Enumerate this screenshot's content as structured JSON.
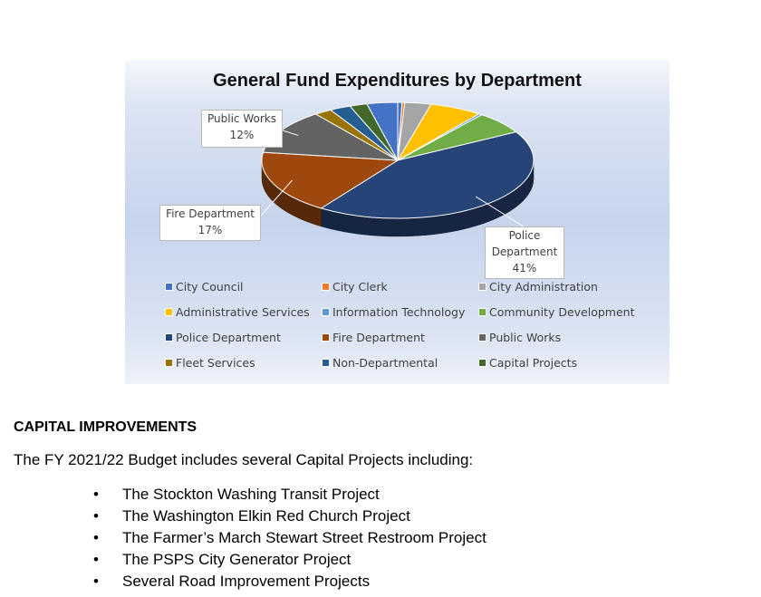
{
  "chart_data": {
    "type": "pie",
    "title": "General Fund Expenditures by Department",
    "series": [
      {
        "name": "City Council",
        "value": 0.5,
        "color": "#4472c4"
      },
      {
        "name": "City Clerk",
        "value": 0.3,
        "color": "#ed7d31"
      },
      {
        "name": "City Administration",
        "value": 3,
        "color": "#a5a5a5"
      },
      {
        "name": "Administrative Services",
        "value": 6,
        "color": "#ffc000"
      },
      {
        "name": "Information Technology",
        "value": 0.4,
        "color": "#5b9bd5"
      },
      {
        "name": "Community Development",
        "value": 6,
        "color": "#70ad47"
      },
      {
        "name": "Police Department",
        "value": 41,
        "color": "#264478"
      },
      {
        "name": "Fire Department",
        "value": 17,
        "color": "#9e480e"
      },
      {
        "name": "Public Works",
        "value": 12,
        "color": "#636363"
      },
      {
        "name": "Fleet Services",
        "value": 2,
        "color": "#997300"
      },
      {
        "name": "Non-Departmental",
        "value": 2.4,
        "color": "#255e91"
      },
      {
        "name": "Capital Projects",
        "value": 2,
        "color": "#43682b"
      },
      {
        "name": "",
        "value": 3.5,
        "color": "#4472c4"
      }
    ],
    "labels": [
      {
        "lines": [
          "Public Works",
          "12%"
        ]
      },
      {
        "lines": [
          "Fire Department",
          "17%"
        ]
      },
      {
        "lines": [
          "Police",
          "Department",
          "41%"
        ]
      }
    ],
    "legend": [
      {
        "name": "City Council",
        "color": "#4472c4"
      },
      {
        "name": "City Clerk",
        "color": "#ed7d31"
      },
      {
        "name": "City Administration",
        "color": "#a5a5a5"
      },
      {
        "name": "Administrative Services",
        "color": "#ffc000"
      },
      {
        "name": "Information Technology",
        "color": "#5b9bd5"
      },
      {
        "name": "Community Development",
        "color": "#70ad47"
      },
      {
        "name": "Police Department",
        "color": "#264478"
      },
      {
        "name": "Fire Department",
        "color": "#9e480e"
      },
      {
        "name": "Public Works",
        "color": "#636363"
      },
      {
        "name": "Fleet Services",
        "color": "#997300"
      },
      {
        "name": "Non-Departmental",
        "color": "#255e91"
      },
      {
        "name": "Capital Projects",
        "color": "#43682b"
      }
    ],
    "legend_position": "bottom"
  },
  "section": {
    "heading": "CAPITAL IMPROVEMENTS",
    "intro": "The FY 2021/22 Budget includes several Capital Projects including:",
    "bullets": [
      "The Stockton Washing Transit Project",
      "The Washington Elkin Red Church Project",
      "The Farmer’s March Stewart Street Restroom Project",
      "The PSPS City Generator Project",
      "Several Road Improvement Projects"
    ]
  }
}
